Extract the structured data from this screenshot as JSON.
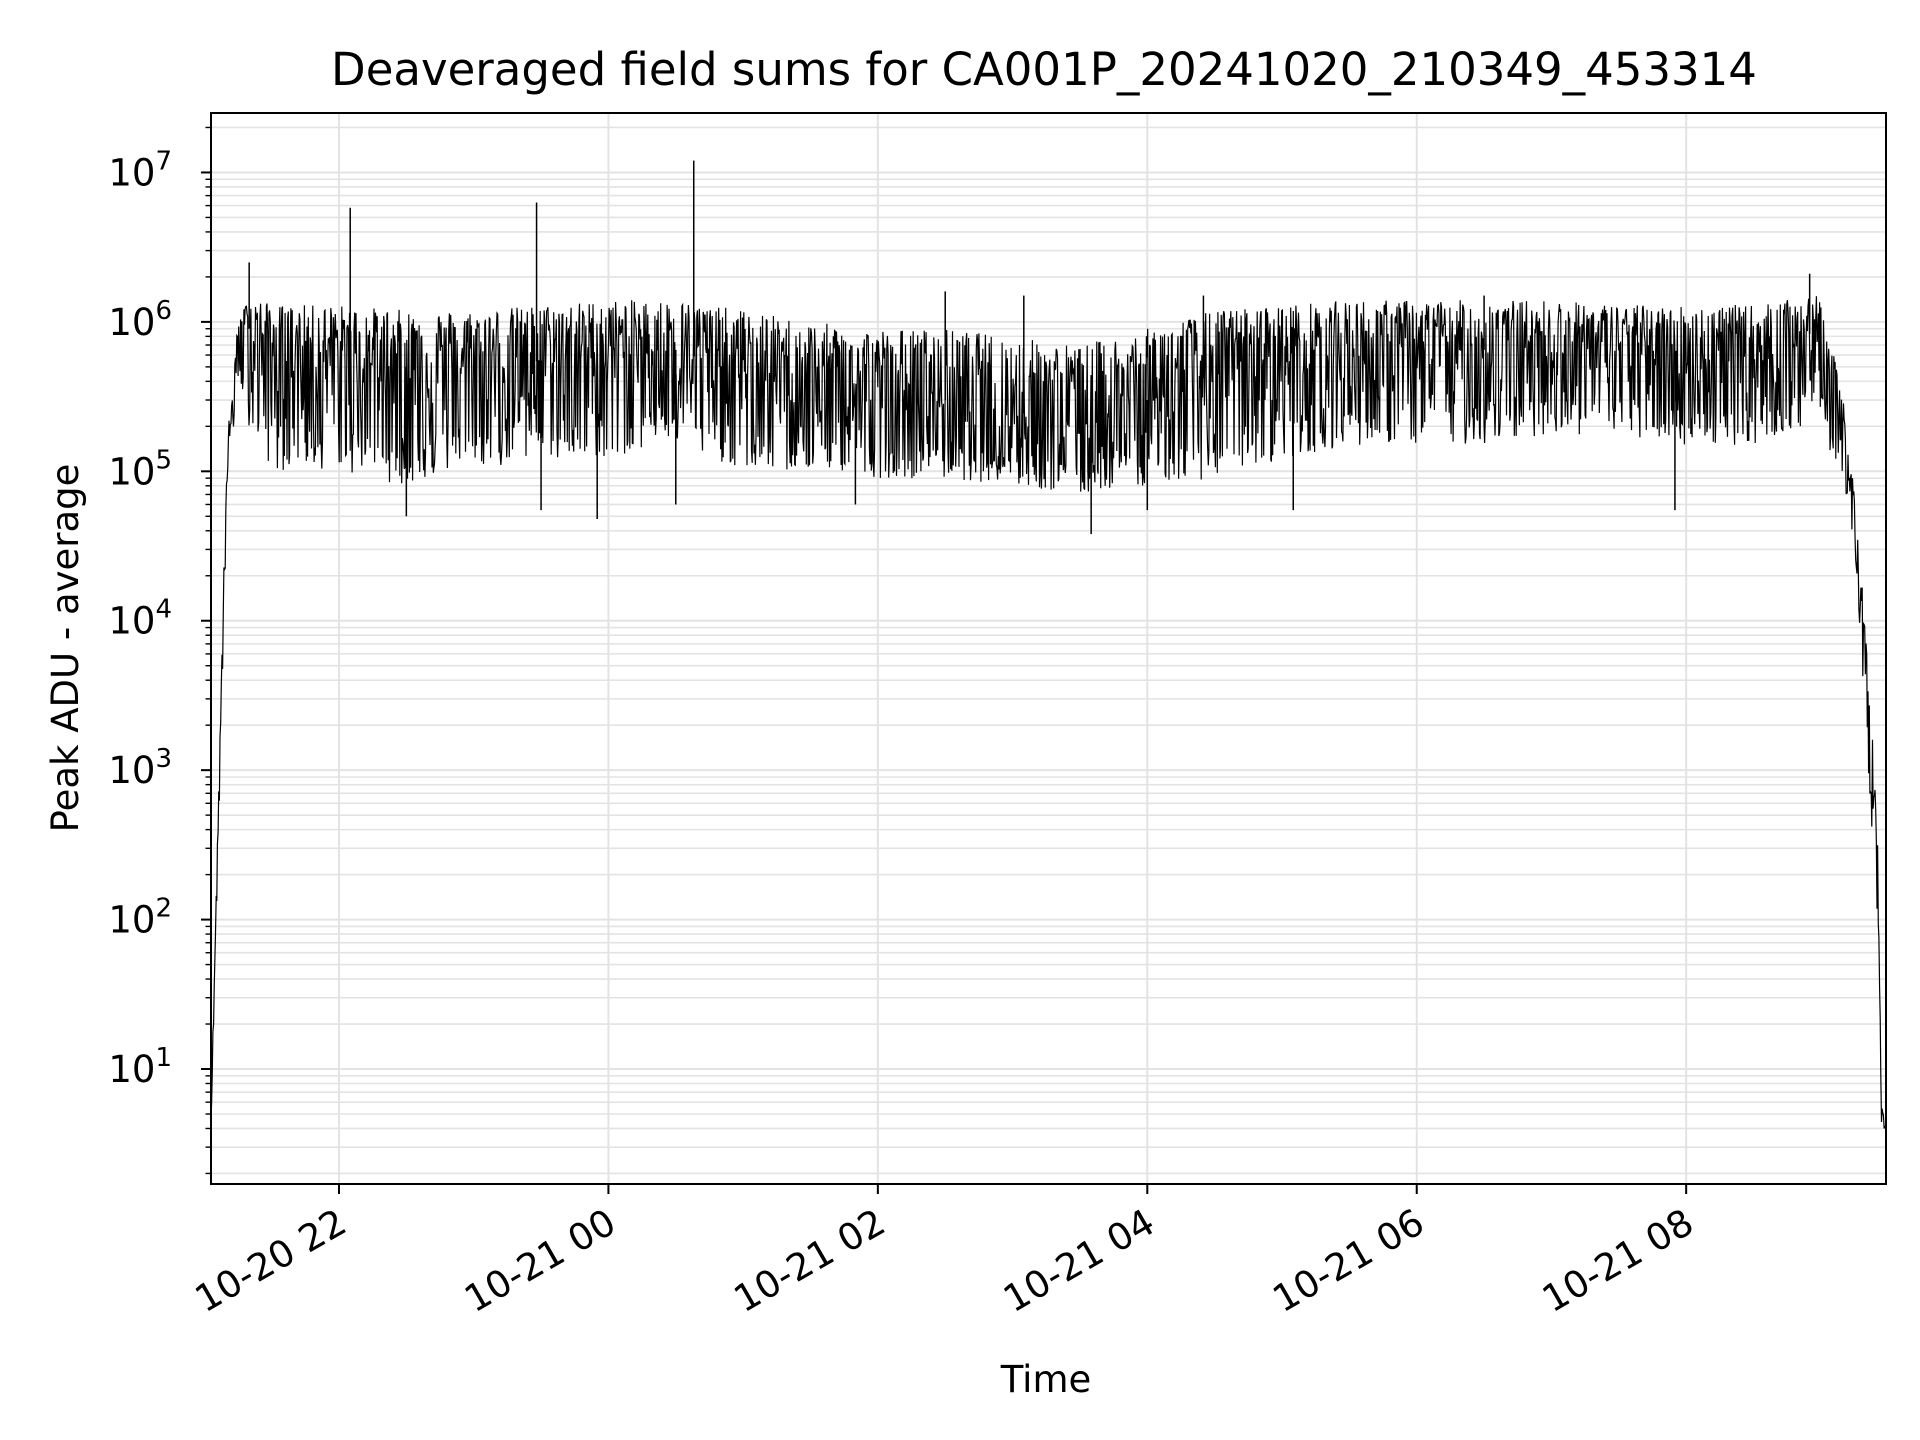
{
  "chart_data": {
    "type": "line",
    "title": "Deaveraged field sums for CA001P_20241020_210349_453314",
    "xlabel": "Time",
    "ylabel": "Peak ADU - average",
    "yscale": "log",
    "ylim": [
      1.7,
      25000000
    ],
    "xlim": [
      "2024-10-20 21:03",
      "2024-10-21 09:29"
    ],
    "grid": true,
    "x_ticks": [
      {
        "t": "2024-10-20 22:00",
        "label": "10-20 22"
      },
      {
        "t": "2024-10-21 00:00",
        "label": "10-21 00"
      },
      {
        "t": "2024-10-21 02:00",
        "label": "10-21 02"
      },
      {
        "t": "2024-10-21 04:00",
        "label": "10-21 04"
      },
      {
        "t": "2024-10-21 06:00",
        "label": "10-21 06"
      },
      {
        "t": "2024-10-21 08:00",
        "label": "10-21 08"
      }
    ],
    "y_ticks": [
      {
        "base": "10",
        "exp": "1"
      },
      {
        "base": "10",
        "exp": "2"
      },
      {
        "base": "10",
        "exp": "3"
      },
      {
        "base": "10",
        "exp": "4"
      },
      {
        "base": "10",
        "exp": "5"
      },
      {
        "base": "10",
        "exp": "6"
      },
      {
        "base": "10",
        "exp": "7"
      }
    ],
    "series": [
      {
        "color": "#000000",
        "envelope": {
          "x": [
            "2024-10-20 21:03",
            "2024-10-20 21:10",
            "2024-10-20 21:15",
            "2024-10-20 21:20",
            "2024-10-20 21:30",
            "2024-10-20 22:00",
            "2024-10-20 22:30",
            "2024-10-20 23:00",
            "2024-10-20 23:30",
            "2024-10-21 00:00",
            "2024-10-21 00:30",
            "2024-10-21 01:00",
            "2024-10-21 01:30",
            "2024-10-21 02:00",
            "2024-10-21 02:30",
            "2024-10-21 03:00",
            "2024-10-21 03:30",
            "2024-10-21 04:00",
            "2024-10-21 04:30",
            "2024-10-21 05:00",
            "2024-10-21 05:30",
            "2024-10-21 06:00",
            "2024-10-21 06:30",
            "2024-10-21 07:00",
            "2024-10-21 07:30",
            "2024-10-21 08:00",
            "2024-10-21 08:30",
            "2024-10-21 09:00",
            "2024-10-21 09:10",
            "2024-10-21 09:15",
            "2024-10-21 09:20",
            "2024-10-21 09:25",
            "2024-10-21 09:27",
            "2024-10-21 09:29"
          ],
          "mid": [
            5,
            100000,
            700000,
            900000,
            600000,
            550000,
            500000,
            500000,
            550000,
            650000,
            650000,
            450000,
            350000,
            300000,
            300000,
            250000,
            220000,
            300000,
            450000,
            550000,
            600000,
            600000,
            650000,
            700000,
            650000,
            550000,
            550000,
            900000,
            150000,
            50000,
            5000,
            300,
            5,
            4
          ],
          "low": [
            4,
            50000,
            400000,
            200000,
            100000,
            100000,
            80000,
            100000,
            120000,
            120000,
            150000,
            100000,
            100000,
            90000,
            90000,
            80000,
            70000,
            80000,
            90000,
            120000,
            150000,
            150000,
            150000,
            180000,
            170000,
            150000,
            150000,
            200000,
            80000,
            30000,
            2000,
            100,
            4,
            4
          ],
          "high": [
            5,
            150000,
            1000000,
            1500000,
            1300000,
            1300000,
            1200000,
            1200000,
            1300000,
            1400000,
            1400000,
            1200000,
            1000000,
            900000,
            900000,
            800000,
            700000,
            900000,
            1200000,
            1300000,
            1400000,
            1400000,
            1400000,
            1400000,
            1300000,
            1300000,
            1300000,
            1500000,
            300000,
            80000,
            8000,
            600,
            6,
            4
          ]
        },
        "spikes": [
          {
            "x": "2024-10-20 21:20",
            "y": 2500000
          },
          {
            "x": "2024-10-20 22:05",
            "y": 5800000
          },
          {
            "x": "2024-10-20 23:28",
            "y": 6300000
          },
          {
            "x": "2024-10-21 00:38",
            "y": 12000000
          },
          {
            "x": "2024-10-21 02:30",
            "y": 1600000
          },
          {
            "x": "2024-10-21 03:05",
            "y": 1500000
          },
          {
            "x": "2024-10-21 04:25",
            "y": 1500000
          },
          {
            "x": "2024-10-21 06:30",
            "y": 1500000
          },
          {
            "x": "2024-10-21 08:55",
            "y": 2100000
          }
        ],
        "dips": [
          {
            "x": "2024-10-20 22:30",
            "y": 50000
          },
          {
            "x": "2024-10-20 23:30",
            "y": 55000
          },
          {
            "x": "2024-10-20 23:55",
            "y": 48000
          },
          {
            "x": "2024-10-21 00:30",
            "y": 60000
          },
          {
            "x": "2024-10-21 01:50",
            "y": 60000
          },
          {
            "x": "2024-10-21 03:35",
            "y": 38000
          },
          {
            "x": "2024-10-21 04:00",
            "y": 55000
          },
          {
            "x": "2024-10-21 05:05",
            "y": 55000
          },
          {
            "x": "2024-10-21 07:55",
            "y": 55000
          }
        ]
      }
    ]
  }
}
